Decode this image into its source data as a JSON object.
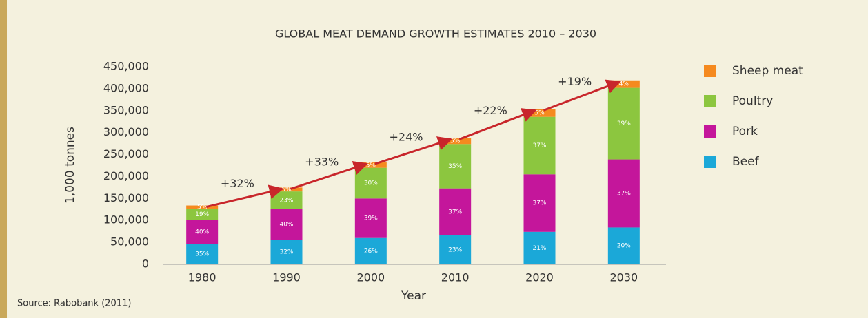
{
  "chart_data": {
    "type": "stacked_bar",
    "title": "GLOBAL MEAT DEMAND GROWTH ESTIMATES 2010 – 2030",
    "y_label": "1,000 tonnes",
    "x_label": "Year",
    "source": "Source: Rabobank (2011)",
    "categories": [
      "1980",
      "1990",
      "2000",
      "2010",
      "2020",
      "2030"
    ],
    "series": [
      {
        "name": "Beef",
        "color": "#1ba8d8",
        "values": [
          47000,
          56000,
          60000,
          66000,
          74000,
          84000
        ],
        "percent_labels": [
          "35%",
          "32%",
          "26%",
          "23%",
          "21%",
          "20%"
        ]
      },
      {
        "name": "Pork",
        "color": "#c4169b",
        "values": [
          54000,
          70000,
          90000,
          107000,
          131000,
          155000
        ],
        "percent_labels": [
          "40%",
          "40%",
          "39%",
          "37%",
          "37%",
          "37%"
        ]
      },
      {
        "name": "Poultry",
        "color": "#8cc63f",
        "values": [
          26000,
          40000,
          70000,
          101000,
          131000,
          163000
        ],
        "percent_labels": [
          "19%",
          "23%",
          "30%",
          "35%",
          "37%",
          "39%"
        ]
      },
      {
        "name": "Sheep meat",
        "color": "#f58a1f",
        "values": [
          7000,
          9000,
          12000,
          14000,
          18000,
          17000
        ],
        "percent_labels": [
          "5%",
          "5%",
          "5%",
          "5%",
          "5%",
          "4%"
        ]
      }
    ],
    "growth_labels": [
      "+32%",
      "+33%",
      "+24%",
      "+22%",
      "+19%"
    ],
    "arrow_color": "#c8262b",
    "ylim": [
      0,
      450000
    ],
    "yticks": [
      0,
      {
        "value": 50000,
        "label": "50,000"
      },
      {
        "value": 100000,
        "label": "100,000"
      },
      {
        "value": 150000,
        "label": "150,000"
      },
      {
        "value": 200000,
        "label": "200,000"
      },
      {
        "value": 250000,
        "label": "250,000"
      },
      {
        "value": 300000,
        "label": "300,000"
      },
      {
        "value": 350000,
        "label": "350,000"
      },
      {
        "value": 400000,
        "label": "400,000"
      },
      {
        "value": 450000,
        "label": "450,000"
      }
    ],
    "grid": false,
    "legend_position": "right"
  }
}
